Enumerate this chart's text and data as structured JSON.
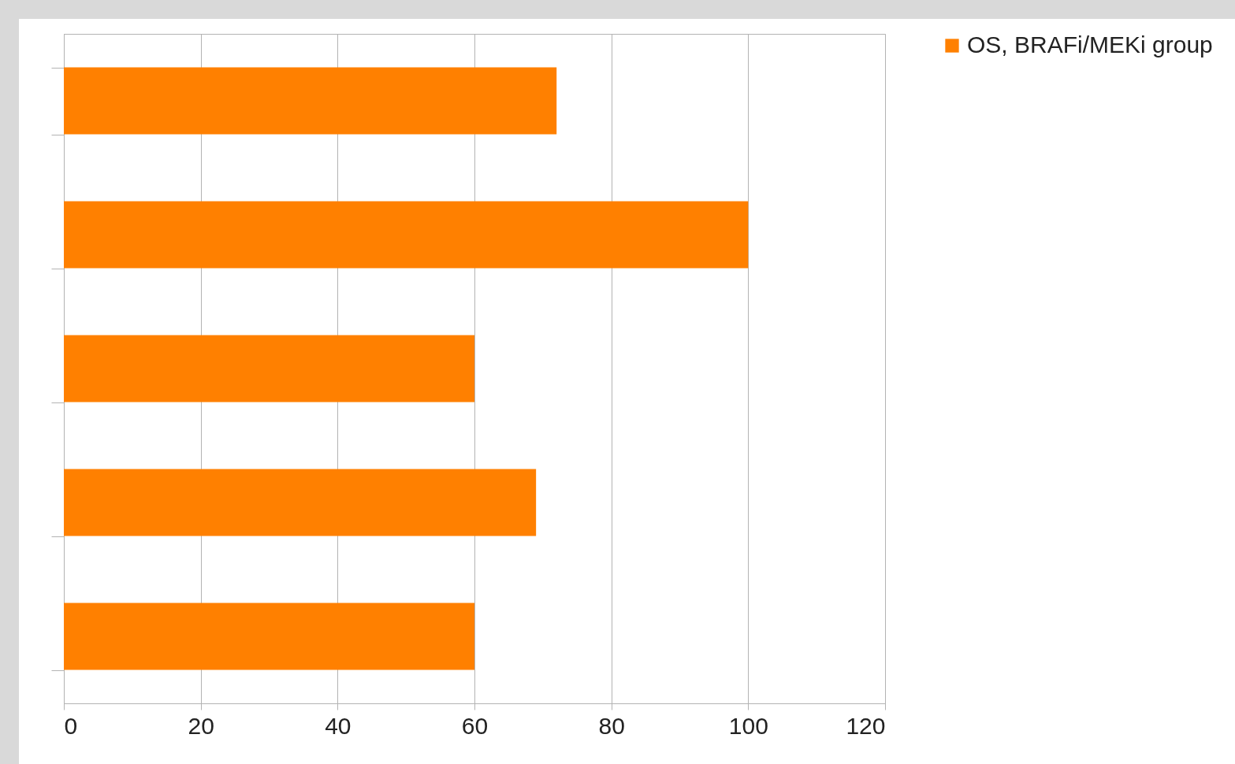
{
  "chart_data": {
    "type": "bar",
    "orientation": "horizontal",
    "categories": [
      null,
      null,
      null,
      null,
      null
    ],
    "series": [
      {
        "name": "OS, BRAFi/MEKi group",
        "color": "#ff8000",
        "values": [
          72,
          100,
          60,
          69,
          60
        ]
      }
    ],
    "xlim": [
      0,
      120
    ],
    "xticks": [
      0,
      20,
      40,
      60,
      80,
      100,
      120
    ],
    "grid": "x",
    "legend": "right"
  }
}
